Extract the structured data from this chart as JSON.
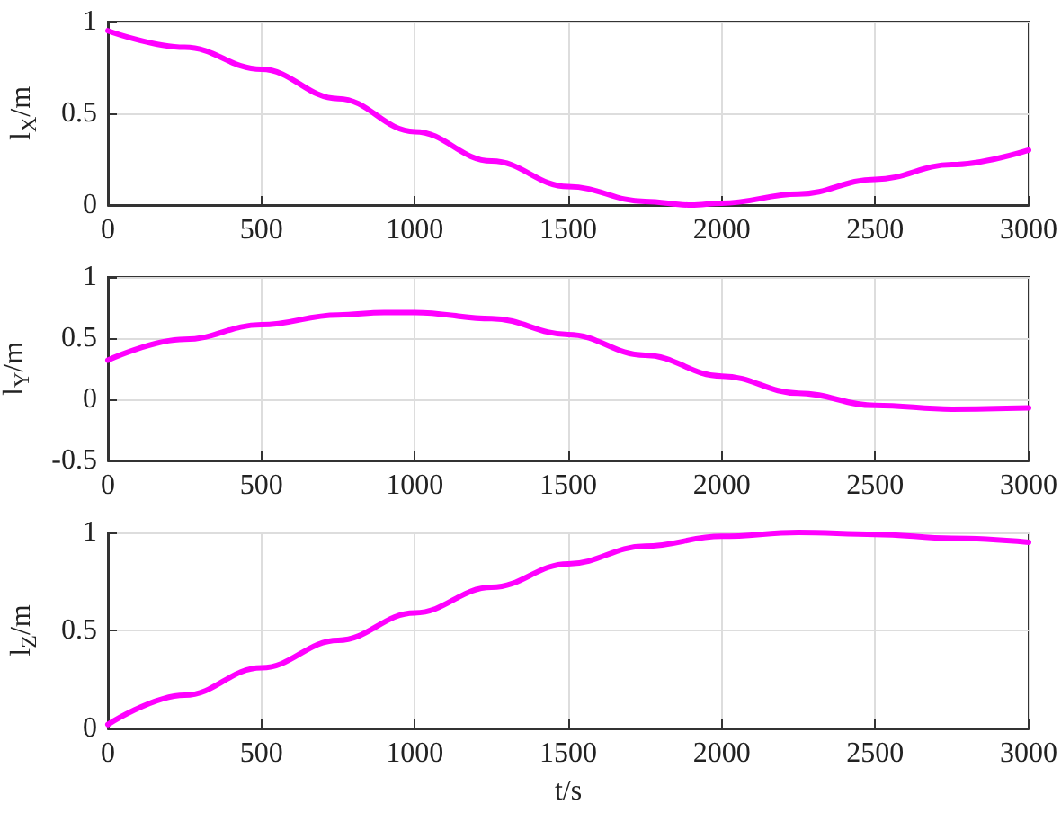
{
  "chart_data": [
    {
      "type": "line",
      "ylabel": "l$_{X}$/m",
      "x": [
        0,
        250,
        500,
        750,
        1000,
        1250,
        1500,
        1750,
        1900,
        2000,
        2250,
        2500,
        2750,
        3000
      ],
      "series": [
        {
          "color": "#ff00ff",
          "values": [
            0.95,
            0.86,
            0.74,
            0.58,
            0.4,
            0.24,
            0.1,
            0.02,
            0.0,
            0.01,
            0.06,
            0.14,
            0.22,
            0.3
          ]
        }
      ],
      "xlim": [
        0,
        3000
      ],
      "xticks": [
        0,
        500,
        1000,
        1500,
        2000,
        2500,
        3000
      ],
      "ylim": [
        0,
        1
      ],
      "yticks": [
        0,
        0.5,
        1
      ],
      "grid": true
    },
    {
      "type": "line",
      "ylabel": "l$_{Y}$/m",
      "x": [
        0,
        250,
        500,
        750,
        900,
        1000,
        1250,
        1500,
        1750,
        2000,
        2250,
        2500,
        2750,
        3000
      ],
      "series": [
        {
          "color": "#ff00ff",
          "values": [
            0.32,
            0.49,
            0.61,
            0.69,
            0.71,
            0.71,
            0.66,
            0.53,
            0.36,
            0.19,
            0.05,
            -0.05,
            -0.08,
            -0.07
          ]
        }
      ],
      "xlim": [
        0,
        3000
      ],
      "xticks": [
        0,
        500,
        1000,
        1500,
        2000,
        2500,
        3000
      ],
      "ylim": [
        -0.5,
        1
      ],
      "yticks": [
        -0.5,
        0,
        0.5,
        1
      ],
      "grid": true
    },
    {
      "type": "line",
      "xlabel": "t/s",
      "ylabel": "l$_{Z}$/m",
      "x": [
        0,
        250,
        500,
        750,
        1000,
        1250,
        1500,
        1750,
        2000,
        2250,
        2500,
        2750,
        3000
      ],
      "series": [
        {
          "color": "#ff00ff",
          "values": [
            0.02,
            0.17,
            0.31,
            0.45,
            0.59,
            0.72,
            0.84,
            0.93,
            0.98,
            1.0,
            0.99,
            0.97,
            0.95
          ]
        }
      ],
      "xlim": [
        0,
        3000
      ],
      "xticks": [
        0,
        500,
        1000,
        1500,
        2000,
        2500,
        3000
      ],
      "ylim": [
        0,
        1
      ],
      "yticks": [
        0,
        0.5,
        1
      ],
      "grid": true
    }
  ]
}
